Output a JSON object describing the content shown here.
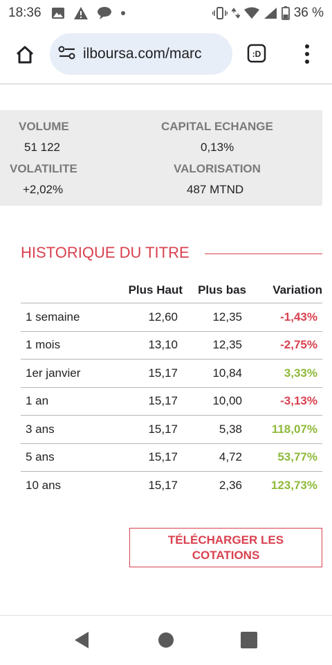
{
  "status_bar": {
    "time": "18:36",
    "battery_percent": "36 %",
    "icons": [
      "image-icon",
      "warning-icon",
      "chat-bubble-icon",
      "dot-icon",
      "vibrate-icon",
      "data-arrows-icon",
      "wifi-icon",
      "signal-icon",
      "battery-icon"
    ]
  },
  "browser": {
    "url": "ilboursa.com/marc",
    "reader_label": ":D"
  },
  "stats": {
    "volume_label": "VOLUME",
    "volume_value": "51 122",
    "capital_label": "CAPITAL ECHANGE",
    "capital_value": "0,13%",
    "volatilite_label": "VOLATILITE",
    "volatilite_value": "+2,02%",
    "valorisation_label": "VALORISATION",
    "valorisation_value": "487 MTND"
  },
  "historique": {
    "title": "HISTORIQUE DU TITRE",
    "headers": {
      "period": "",
      "haut": "Plus Haut",
      "bas": "Plus bas",
      "variation": "Variation"
    },
    "rows": [
      {
        "period": "1 semaine",
        "haut": "12,60",
        "bas": "12,35",
        "variation": "-1,43%",
        "trend": "negative"
      },
      {
        "period": "1 mois",
        "haut": "13,10",
        "bas": "12,35",
        "variation": "-2,75%",
        "trend": "negative"
      },
      {
        "period": "1er janvier",
        "haut": "15,17",
        "bas": "10,84",
        "variation": "3,33%",
        "trend": "positive"
      },
      {
        "period": "1 an",
        "haut": "15,17",
        "bas": "10,00",
        "variation": "-3,13%",
        "trend": "negative"
      },
      {
        "period": "3 ans",
        "haut": "15,17",
        "bas": "5,38",
        "variation": "118,07%",
        "trend": "positive"
      },
      {
        "period": "5 ans",
        "haut": "15,17",
        "bas": "4,72",
        "variation": "53,77%",
        "trend": "positive"
      },
      {
        "period": "10 ans",
        "haut": "15,17",
        "bas": "2,36",
        "variation": "123,73%",
        "trend": "positive"
      }
    ]
  },
  "download_button": {
    "label": "TÉLÉCHARGER LES COTATIONS"
  },
  "colors": {
    "accent": "#d9414f",
    "positive": "#8fb93a",
    "stats_bg": "#ececec",
    "url_bar_bg": "#e8eef8"
  }
}
